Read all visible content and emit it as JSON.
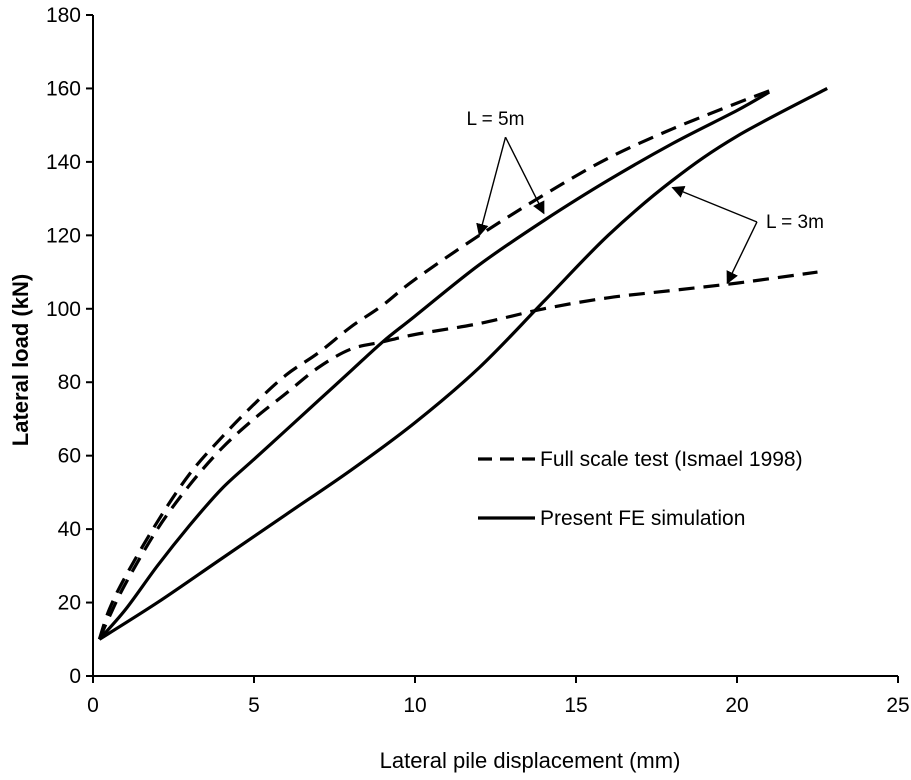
{
  "chart_data": {
    "type": "line",
    "title": "",
    "xlabel": "Lateral pile displacement (mm)",
    "ylabel": "Lateral load (kN)",
    "xlim": [
      0,
      25
    ],
    "ylim": [
      0,
      180
    ],
    "x_ticks": [
      0,
      5,
      10,
      15,
      20,
      25
    ],
    "y_ticks": [
      0,
      20,
      40,
      60,
      80,
      100,
      120,
      140,
      160,
      180
    ],
    "grid": false,
    "legend_position": "center-right",
    "legend": [
      {
        "label": "Full scale test (Ismael 1998)",
        "style": "dashed"
      },
      {
        "label": "Present FE simulation",
        "style": "solid"
      }
    ],
    "series": [
      {
        "group": "L = 5m",
        "style": "dashed",
        "points": [
          [
            0.2,
            10
          ],
          [
            0.5,
            18
          ],
          [
            1,
            27
          ],
          [
            2,
            42
          ],
          [
            3,
            55
          ],
          [
            4,
            65
          ],
          [
            5,
            74
          ],
          [
            6,
            82
          ],
          [
            7,
            88
          ],
          [
            8,
            95
          ],
          [
            9,
            101
          ],
          [
            10,
            108
          ],
          [
            12,
            120
          ],
          [
            14,
            131
          ],
          [
            16,
            141
          ],
          [
            18,
            149
          ],
          [
            20,
            156
          ],
          [
            21.2,
            160
          ]
        ]
      },
      {
        "group": "L = 5m",
        "style": "solid",
        "points": [
          [
            0.2,
            10
          ],
          [
            1,
            18
          ],
          [
            2,
            30
          ],
          [
            3,
            41
          ],
          [
            4,
            51
          ],
          [
            5,
            59
          ],
          [
            6,
            67
          ],
          [
            7,
            75
          ],
          [
            8,
            83
          ],
          [
            9,
            91
          ],
          [
            10,
            98
          ],
          [
            12,
            112
          ],
          [
            14,
            124
          ],
          [
            16,
            135
          ],
          [
            18,
            145
          ],
          [
            20,
            154
          ],
          [
            21,
            159
          ]
        ]
      },
      {
        "group": "L = 3m",
        "style": "dashed",
        "points": [
          [
            0.2,
            10
          ],
          [
            0.5,
            16
          ],
          [
            1,
            25
          ],
          [
            2,
            40
          ],
          [
            3,
            52
          ],
          [
            4,
            62
          ],
          [
            5,
            70
          ],
          [
            6,
            77
          ],
          [
            7,
            84
          ],
          [
            8,
            89
          ],
          [
            9,
            91
          ],
          [
            10,
            93
          ],
          [
            12,
            96
          ],
          [
            14,
            100
          ],
          [
            16,
            103
          ],
          [
            18,
            105
          ],
          [
            20,
            107
          ],
          [
            22.5,
            110
          ]
        ]
      },
      {
        "group": "L = 3m",
        "style": "solid",
        "points": [
          [
            0.2,
            10
          ],
          [
            2,
            20
          ],
          [
            4,
            32
          ],
          [
            6,
            44
          ],
          [
            8,
            56
          ],
          [
            10,
            69
          ],
          [
            12,
            84
          ],
          [
            14,
            102
          ],
          [
            16,
            120
          ],
          [
            18,
            135
          ],
          [
            20,
            147
          ],
          [
            22.8,
            160
          ]
        ]
      }
    ],
    "annotations": [
      {
        "text": "L = 5m",
        "text_at": [
          12.5,
          150
        ],
        "arrows_to": [
          [
            12,
            120
          ],
          [
            14,
            126
          ]
        ]
      },
      {
        "text": "L = 3m",
        "text_at": [
          21.8,
          122
        ],
        "arrows_to": [
          [
            18,
            133
          ],
          [
            19.7,
            107
          ]
        ]
      }
    ]
  }
}
